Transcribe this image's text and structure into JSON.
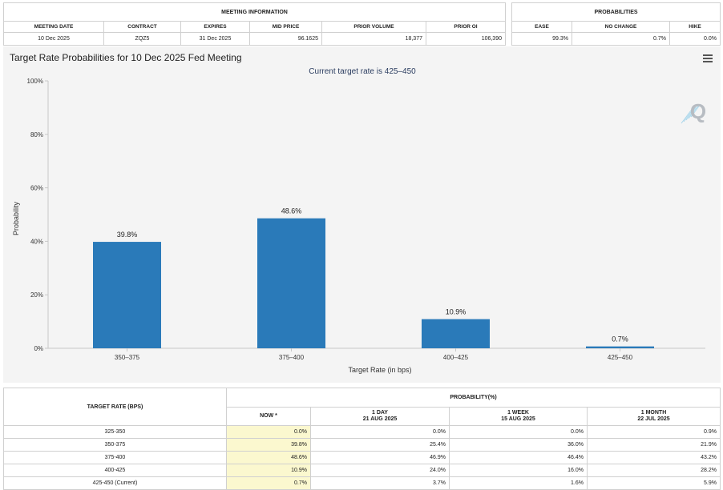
{
  "meeting_info": {
    "header": "MEETING INFORMATION",
    "columns": [
      "MEETING DATE",
      "CONTRACT",
      "EXPIRES",
      "MID PRICE",
      "PRIOR VOLUME",
      "PRIOR OI"
    ],
    "values": [
      "10 Dec 2025",
      "ZQZ5",
      "31 Dec 2025",
      "96.1625",
      "18,377",
      "106,390"
    ]
  },
  "probabilities": {
    "header": "PROBABILITIES",
    "columns": [
      "EASE",
      "NO CHANGE",
      "HIKE"
    ],
    "values": [
      "99.3%",
      "0.7%",
      "0.0%"
    ]
  },
  "chart_title": "Target Rate Probabilities for 10 Dec 2025 Fed Meeting",
  "chart_data": {
    "type": "bar",
    "subtitle": "Current target rate is 425–450",
    "categories": [
      "350–375",
      "375–400",
      "400–425",
      "425–450"
    ],
    "values": [
      39.8,
      48.6,
      10.9,
      0.7
    ],
    "value_labels": [
      "39.8%",
      "48.6%",
      "10.9%",
      "0.7%"
    ],
    "xlabel": "Target Rate (in bps)",
    "ylabel": "Probability",
    "ylim": [
      0,
      100
    ],
    "yticks": [
      0,
      20,
      40,
      60,
      80,
      100
    ],
    "ytick_labels": [
      "0%",
      "20%",
      "40%",
      "60%",
      "80%",
      "100%"
    ],
    "bar_color": "#2a7ab9",
    "grid": false,
    "watermark": "Q"
  },
  "bottom_table": {
    "rate_header": "TARGET RATE (BPS)",
    "prob_header": "PROBABILITY(%)",
    "col_now": "NOW *",
    "col_1day": "1 DAY",
    "col_1day_date": "21 AUG 2025",
    "col_1week": "1 WEEK",
    "col_1week_date": "15 AUG 2025",
    "col_1month": "1 MONTH",
    "col_1month_date": "22 JUL 2025",
    "rows": [
      {
        "rate": "325-350",
        "now": "0.0%",
        "d1": "0.0%",
        "w1": "0.0%",
        "m1": "0.9%"
      },
      {
        "rate": "350-375",
        "now": "39.8%",
        "d1": "25.4%",
        "w1": "36.0%",
        "m1": "21.9%"
      },
      {
        "rate": "375-400",
        "now": "48.6%",
        "d1": "46.9%",
        "w1": "46.4%",
        "m1": "43.2%"
      },
      {
        "rate": "400-425",
        "now": "10.9%",
        "d1": "24.0%",
        "w1": "16.0%",
        "m1": "28.2%"
      },
      {
        "rate": "425-450 (Current)",
        "now": "0.7%",
        "d1": "3.7%",
        "w1": "1.6%",
        "m1": "5.9%"
      }
    ]
  }
}
